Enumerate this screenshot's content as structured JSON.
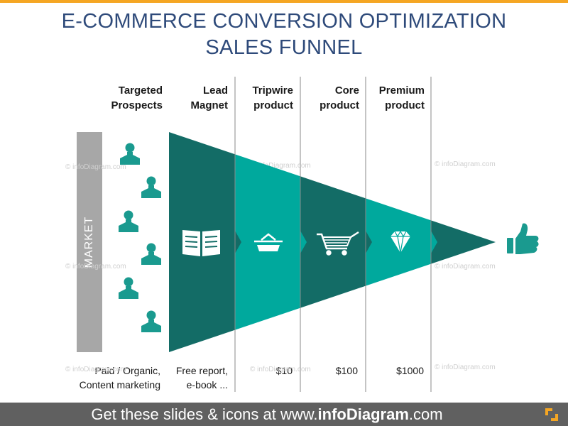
{
  "title": {
    "line1": "E-COMMERCE CONVERSION OPTIMIZATION",
    "line2": "SALES FUNNEL"
  },
  "market_label": "MARKET",
  "columns": [
    {
      "head1": "Targeted",
      "head2": "Prospects",
      "foot1": "Paid / Organic,",
      "foot2": "Content marketing"
    },
    {
      "head1": "Lead",
      "head2": "Magnet",
      "foot1": "Free report,",
      "foot2": "e-book ..."
    },
    {
      "head1": "Tripwire",
      "head2": "product",
      "foot1": "",
      "foot2": "$10"
    },
    {
      "head1": "Core",
      "head2": "product",
      "foot1": "",
      "foot2": "$100"
    },
    {
      "head1": "Premium",
      "head2": "product",
      "foot1": "",
      "foot2": "$1000"
    }
  ],
  "icons": {
    "prospects": "person-icon",
    "lead_magnet": "open-book-icon",
    "tripwire": "basket-icon",
    "core": "shopping-cart-icon",
    "premium": "diamond-icon",
    "result": "thumbs-up-icon"
  },
  "watermark": "© infoDiagram.com",
  "footer": {
    "prefix": "Get these slides & icons at www.",
    "brand": "infoDiagram",
    "suffix": ".com"
  },
  "colors": {
    "dark_teal": "#136c66",
    "light_teal": "#00a99d",
    "title": "#2e4a7a",
    "accent": "#f5a623",
    "market": "#a7a7a7",
    "footer": "#606060"
  }
}
